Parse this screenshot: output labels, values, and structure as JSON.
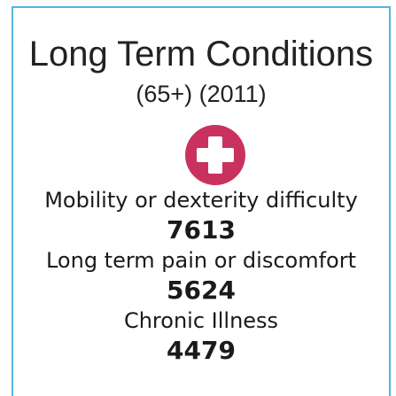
{
  "title": "Long Term Conditions",
  "subtitle": "(65+) (2011)",
  "items": [
    {
      "label": "Mobility or dexterity difficulty",
      "value": 7613
    },
    {
      "label": "Long term pain or discomfort",
      "value": 5624
    },
    {
      "label": "Chronic Illness",
      "value": 4479
    }
  ]
}
